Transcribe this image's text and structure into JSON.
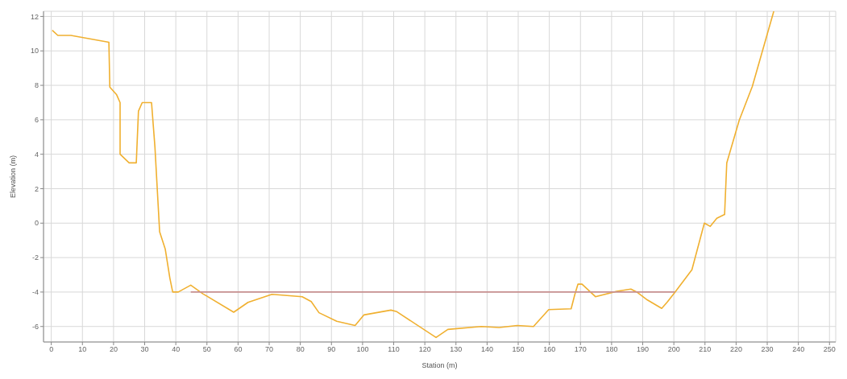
{
  "chart_data": {
    "type": "line",
    "xlabel": "Station (m)",
    "ylabel": "Elevation (m)",
    "xlim": [
      -2.5,
      252
    ],
    "ylim": [
      -6.9,
      12.3
    ],
    "xticks": [
      0,
      10,
      20,
      30,
      40,
      50,
      60,
      70,
      80,
      90,
      100,
      110,
      120,
      130,
      140,
      150,
      160,
      170,
      180,
      190,
      200,
      210,
      220,
      230,
      240,
      250
    ],
    "yticks": [
      -6,
      -4,
      -2,
      0,
      2,
      4,
      6,
      8,
      10,
      12
    ],
    "grid": true,
    "marker": "none",
    "line_style": "solid",
    "series": [
      {
        "color": "#f0b030",
        "x": [
          0.3,
          2.1,
          6.3,
          18.5,
          18.8,
          21,
          22.1,
          22.1,
          25,
          27.3,
          28,
          29.2,
          32.2,
          33.3,
          34.8,
          36.6,
          38.1,
          39,
          40.8,
          44.8,
          48.7,
          58.6,
          63.2,
          70.9,
          80.6,
          83.5,
          86,
          91.7,
          97.6,
          100.4,
          109.1,
          111,
          123.6,
          127.4,
          138.1,
          143.9,
          149.7,
          154.9,
          159.8,
          167,
          168.2,
          169.2,
          170.5,
          174.8,
          181.6,
          186.2,
          188.1,
          191.5,
          196.1,
          197.8,
          200.3,
          205.8,
          209.8,
          211.7,
          213.8,
          216.3,
          217,
          221,
          225.2,
          232.1
        ],
        "values": [
          11.2,
          10.9,
          10.9,
          10.5,
          7.9,
          7.45,
          7,
          4,
          3.5,
          3.5,
          6.5,
          7,
          7,
          4.4,
          -0.5,
          -1.5,
          -3.2,
          -4,
          -4,
          -3.6,
          -4.1,
          -5.17,
          -4.6,
          -4.13,
          -4.27,
          -4.55,
          -5.2,
          -5.7,
          -5.94,
          -5.33,
          -5.05,
          -5.14,
          -6.64,
          -6.17,
          -6,
          -6.06,
          -5.94,
          -6,
          -5.02,
          -4.97,
          -4.13,
          -3.54,
          -3.54,
          -4.27,
          -3.96,
          -3.83,
          -4,
          -4.46,
          -4.95,
          -4.6,
          -4.03,
          -2.71,
          0,
          -0.19,
          0.28,
          0.5,
          3.49,
          5.97,
          7.93,
          12.3
        ]
      },
      {
        "color": "#c89090",
        "x": [
          44.8,
          200.3
        ],
        "values": [
          -4,
          -4
        ]
      }
    ]
  }
}
